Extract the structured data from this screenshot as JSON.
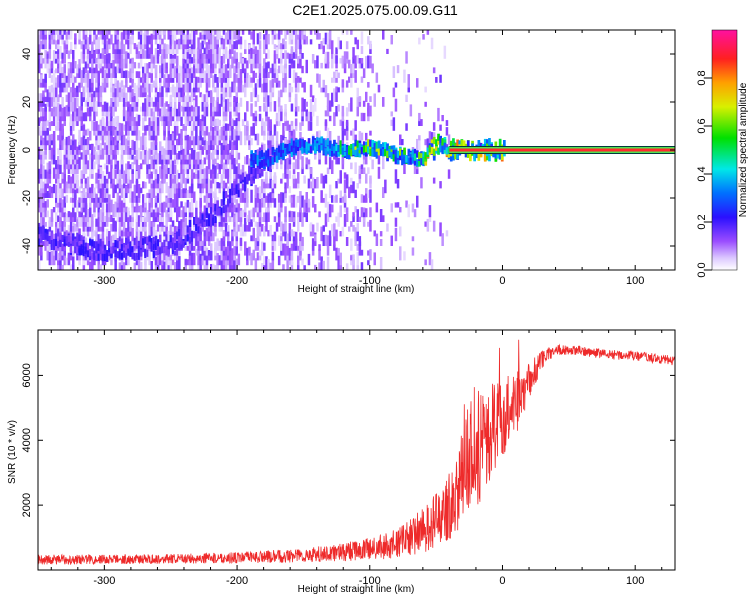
{
  "title": "C2E1.2025.075.00.09.G11",
  "colors": {
    "snr_line": "#ee2a2a",
    "doppler_band": "#5a0ad8",
    "carrier_line": "#ff2a2a",
    "carrier_border": "#003a3a"
  },
  "chart_data": [
    {
      "type": "heatmap",
      "title": "C2E1.2025.075.00.09.G11",
      "xlabel": "Height of straight line (km)",
      "ylabel": "Frequency (Hz)",
      "xlim": [
        -350,
        130
      ],
      "ylim": [
        -50,
        50
      ],
      "xticks": [
        -300,
        -200,
        -100,
        0,
        100
      ],
      "yticks": [
        -40,
        -20,
        0,
        20,
        40
      ],
      "colorbar": {
        "label": "Normalized spectral amplitude",
        "range": [
          0,
          1
        ],
        "ticks": [
          0.0,
          0.2,
          0.4,
          0.6,
          0.8
        ],
        "colormap": "rainbow (white→violet→blue→cyan→green→yellow→red→magenta)"
      },
      "features": {
        "carrier_line": {
          "x_from": -40,
          "x_to": 130,
          "freq": 0,
          "amplitude": 1.0
        },
        "main_signal_track": [
          {
            "x": -180,
            "freq": -4
          },
          {
            "x": -160,
            "freq": 1
          },
          {
            "x": -140,
            "freq": 2
          },
          {
            "x": -120,
            "freq": 0
          },
          {
            "x": -100,
            "freq": 1
          },
          {
            "x": -80,
            "freq": -2
          },
          {
            "x": -60,
            "freq": -4
          },
          {
            "x": -50,
            "freq": 2
          },
          {
            "x": -40,
            "freq": 0
          },
          {
            "x": 0,
            "freq": 0
          }
        ],
        "multipath_arc": [
          {
            "x": -350,
            "freq": -36
          },
          {
            "x": -300,
            "freq": -43
          },
          {
            "x": -250,
            "freq": -40
          },
          {
            "x": -220,
            "freq": -28
          },
          {
            "x": -200,
            "freq": -16
          },
          {
            "x": -180,
            "freq": -6
          }
        ],
        "noise_region": {
          "x_from": -350,
          "x_to": -100,
          "amplitude_range": [
            0.05,
            0.2
          ]
        }
      }
    },
    {
      "type": "line",
      "xlabel": "Height of straight line (km)",
      "ylabel": "SNR (10 * v/v)",
      "xlim": [
        -350,
        130
      ],
      "ylim": [
        0,
        7400
      ],
      "xticks": [
        -300,
        -200,
        -100,
        0,
        100
      ],
      "yticks": [
        2000,
        4000,
        6000
      ],
      "grid": false,
      "series": [
        {
          "values_envelope": [
            {
              "x": -350,
              "mean": 320,
              "noise": 150
            },
            {
              "x": -300,
              "mean": 330,
              "noise": 150
            },
            {
              "x": -250,
              "mean": 340,
              "noise": 150
            },
            {
              "x": -200,
              "mean": 380,
              "noise": 170
            },
            {
              "x": -150,
              "mean": 450,
              "noise": 220
            },
            {
              "x": -120,
              "mean": 550,
              "noise": 280
            },
            {
              "x": -100,
              "mean": 650,
              "noise": 350
            },
            {
              "x": -80,
              "mean": 800,
              "noise": 450
            },
            {
              "x": -60,
              "mean": 1200,
              "noise": 700
            },
            {
              "x": -45,
              "mean": 1700,
              "noise": 900
            },
            {
              "x": -35,
              "mean": 2300,
              "noise": 1200
            },
            {
              "x": -28,
              "mean": 3200,
              "noise": 1600
            },
            {
              "x": -22,
              "mean": 4000,
              "noise": 1800
            },
            {
              "x": -15,
              "mean": 3600,
              "noise": 1800
            },
            {
              "x": -10,
              "mean": 4200,
              "noise": 1500
            },
            {
              "x": -2,
              "mean": 4600,
              "noise": 1300
            },
            {
              "x": 10,
              "mean": 5200,
              "noise": 900
            },
            {
              "x": 20,
              "mean": 5800,
              "noise": 600
            },
            {
              "x": 30,
              "mean": 6500,
              "noise": 300
            },
            {
              "x": 40,
              "mean": 6800,
              "noise": 150
            },
            {
              "x": 60,
              "mean": 6750,
              "noise": 150
            },
            {
              "x": 80,
              "mean": 6650,
              "noise": 150
            },
            {
              "x": 100,
              "mean": 6600,
              "noise": 150
            },
            {
              "x": 130,
              "mean": 6450,
              "noise": 150
            }
          ]
        }
      ]
    }
  ]
}
